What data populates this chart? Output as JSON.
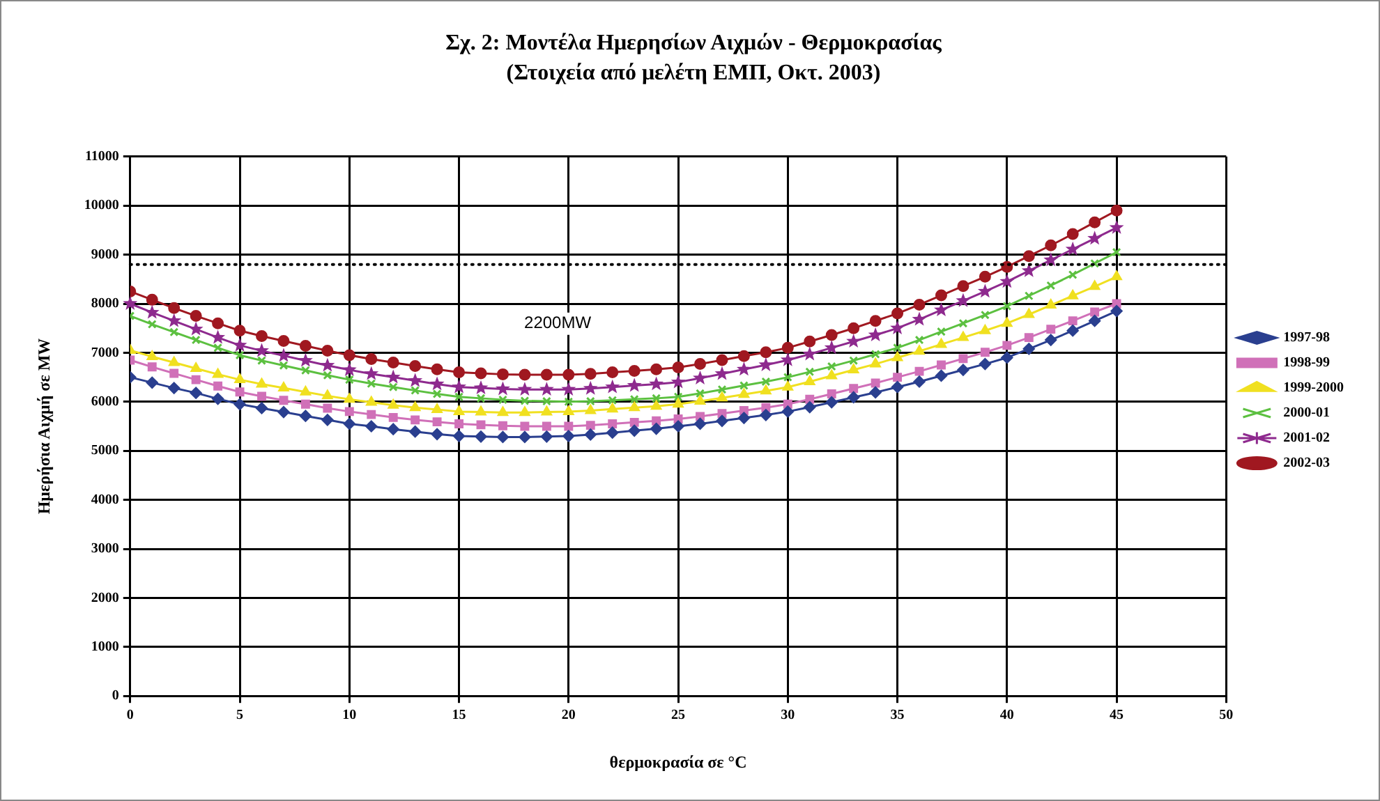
{
  "chart_data": {
    "type": "line",
    "title": "Σχ. 2: Μοντέλα Ημερησίων Αιχμών - Θερμοκρασίας",
    "subtitle": "(Στοιχεία από μελέτη ΕΜΠ, Οκτ. 2003)",
    "xlabel": "θερμοκρασία σε °C",
    "ylabel": "Ημερήσια Αιχμή σε MW",
    "x": [
      0,
      1,
      2,
      3,
      4,
      5,
      6,
      7,
      8,
      9,
      10,
      11,
      12,
      13,
      14,
      15,
      16,
      17,
      18,
      19,
      20,
      21,
      22,
      23,
      24,
      25,
      26,
      27,
      28,
      29,
      30,
      31,
      32,
      33,
      34,
      35,
      36,
      37,
      38,
      39,
      40,
      41,
      42,
      43,
      44,
      45
    ],
    "series": [
      {
        "name": "1997-98",
        "color": "#2a3f8f",
        "marker": "diamond",
        "values": [
          6500,
          6390,
          6280,
          6180,
          6060,
          5950,
          5870,
          5790,
          5710,
          5630,
          5550,
          5500,
          5440,
          5390,
          5340,
          5300,
          5290,
          5280,
          5280,
          5290,
          5300,
          5330,
          5370,
          5410,
          5450,
          5500,
          5550,
          5610,
          5670,
          5730,
          5800,
          5890,
          5990,
          6090,
          6190,
          6300,
          6410,
          6530,
          6650,
          6770,
          6900,
          7080,
          7260,
          7450,
          7650,
          7850
        ]
      },
      {
        "name": "1998-99",
        "color": "#d070b8",
        "marker": "square",
        "values": [
          6850,
          6710,
          6580,
          6450,
          6320,
          6200,
          6110,
          6030,
          5950,
          5870,
          5800,
          5740,
          5680,
          5630,
          5590,
          5550,
          5530,
          5510,
          5500,
          5500,
          5500,
          5520,
          5550,
          5580,
          5610,
          5650,
          5700,
          5760,
          5820,
          5880,
          5950,
          6050,
          6160,
          6270,
          6380,
          6500,
          6620,
          6750,
          6880,
          7010,
          7150,
          7310,
          7480,
          7650,
          7830,
          8000
        ]
      },
      {
        "name": "1999-2000",
        "color": "#f0e020",
        "marker": "triangle",
        "values": [
          7050,
          6920,
          6800,
          6680,
          6560,
          6450,
          6360,
          6280,
          6200,
          6120,
          6050,
          5990,
          5930,
          5880,
          5840,
          5800,
          5790,
          5780,
          5780,
          5790,
          5800,
          5820,
          5850,
          5880,
          5910,
          5950,
          6010,
          6080,
          6150,
          6220,
          6300,
          6410,
          6530,
          6650,
          6770,
          6900,
          7030,
          7170,
          7310,
          7450,
          7600,
          7780,
          7970,
          8160,
          8350,
          8550
        ]
      },
      {
        "name": "2000-01",
        "color": "#5cc040",
        "marker": "cross",
        "values": [
          7750,
          7580,
          7420,
          7260,
          7100,
          6950,
          6840,
          6740,
          6640,
          6540,
          6450,
          6370,
          6300,
          6230,
          6160,
          6100,
          6070,
          6040,
          6020,
          6010,
          6000,
          6010,
          6030,
          6050,
          6070,
          6100,
          6170,
          6250,
          6330,
          6410,
          6500,
          6610,
          6720,
          6840,
          6970,
          7100,
          7260,
          7430,
          7600,
          7770,
          7950,
          8160,
          8370,
          8590,
          8820,
          9050
        ]
      },
      {
        "name": "2001-02",
        "color": "#8e2a8e",
        "marker": "star",
        "values": [
          8000,
          7820,
          7650,
          7480,
          7310,
          7150,
          7040,
          6940,
          6840,
          6740,
          6650,
          6570,
          6500,
          6430,
          6360,
          6300,
          6280,
          6260,
          6250,
          6250,
          6250,
          6270,
          6300,
          6330,
          6360,
          6400,
          6480,
          6570,
          6660,
          6750,
          6850,
          6970,
          7100,
          7230,
          7360,
          7500,
          7680,
          7870,
          8060,
          8250,
          8450,
          8670,
          8890,
          9110,
          9330,
          9550
        ]
      },
      {
        "name": "2002-03",
        "color": "#a01820",
        "marker": "circle",
        "values": [
          8250,
          8080,
          7910,
          7750,
          7600,
          7450,
          7340,
          7240,
          7140,
          7040,
          6950,
          6870,
          6800,
          6730,
          6660,
          6600,
          6580,
          6560,
          6550,
          6550,
          6550,
          6570,
          6600,
          6630,
          6660,
          6700,
          6770,
          6850,
          6930,
          7010,
          7100,
          7230,
          7360,
          7500,
          7650,
          7800,
          7980,
          8170,
          8360,
          8550,
          8750,
          8970,
          9190,
          9420,
          9660,
          9900
        ]
      }
    ],
    "xlim": [
      0,
      50
    ],
    "xticks": [
      0,
      5,
      10,
      15,
      20,
      25,
      30,
      35,
      40,
      45,
      50
    ],
    "ylim": [
      0,
      11000
    ],
    "yticks": [
      0,
      1000,
      2000,
      3000,
      4000,
      5000,
      6000,
      7000,
      8000,
      9000,
      10000,
      11000
    ],
    "ref_lines": [
      {
        "axis": "y",
        "value": 8800,
        "color": "#000000",
        "line_style": "dotted"
      }
    ],
    "annotations": [
      "2200MW"
    ],
    "grid": true,
    "legend": "right",
    "line_style": "solid"
  }
}
